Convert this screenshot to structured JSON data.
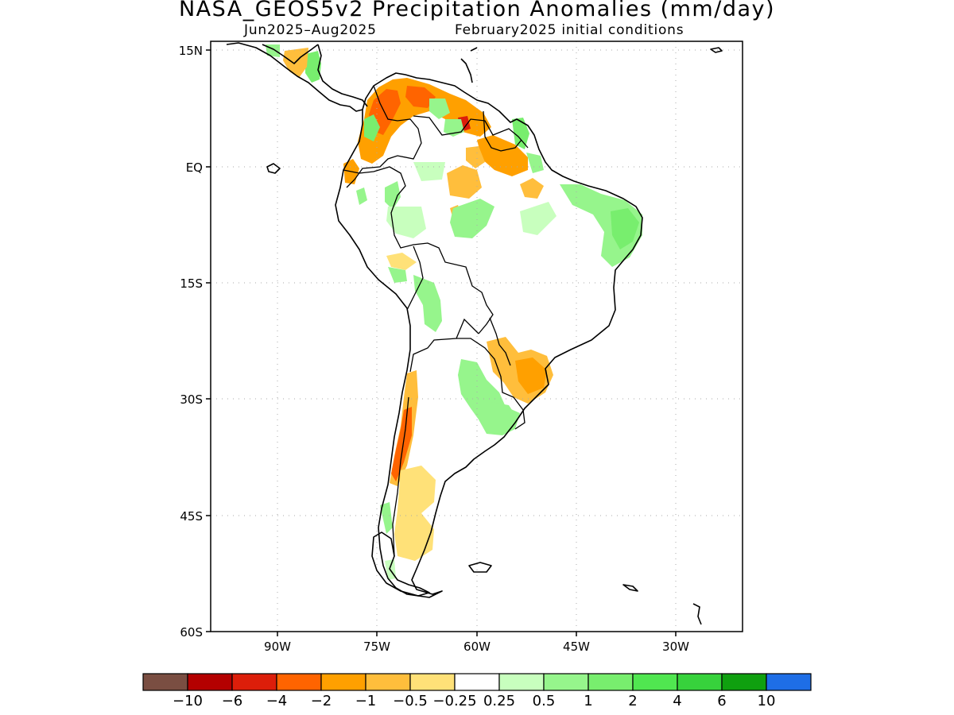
{
  "title": "NASA_GEOS5v2 Precipitation Anomalies (mm/day)",
  "subtitle_left": "Jun2025–Aug2025",
  "subtitle_right": "February2025 initial conditions",
  "map": {
    "lon_range": [
      -102.5,
      -22.5
    ],
    "lat_range": [
      -60,
      15
    ],
    "lat_ticks": [
      {
        "value": 15,
        "label": "15N"
      },
      {
        "value": 0,
        "label": "EQ"
      },
      {
        "value": -15,
        "label": "15S"
      },
      {
        "value": -30,
        "label": "30S"
      },
      {
        "value": -45,
        "label": "45S"
      },
      {
        "value": -60,
        "label": "60S"
      }
    ],
    "lon_ticks": [
      {
        "value": -90,
        "label": "90W"
      },
      {
        "value": -75,
        "label": "75W"
      },
      {
        "value": -60,
        "label": "60W"
      },
      {
        "value": -45,
        "label": "45W"
      },
      {
        "value": -30,
        "label": "30W"
      }
    ],
    "grid": "dotted"
  },
  "colorbar": {
    "colors": [
      "#7a4e42",
      "#b40000",
      "#dc1e0a",
      "#ff6400",
      "#ffa000",
      "#ffbe3c",
      "#ffe178",
      "#ffffff",
      "#c8ffbe",
      "#96f58c",
      "#78ee6e",
      "#50e650",
      "#37d23c",
      "#0fa00f",
      "#1e6ee6"
    ],
    "labels": [
      "−10",
      "−6",
      "−4",
      "−2",
      "−1",
      "−0.5",
      "−0.25",
      "0.25",
      "0.5",
      "1",
      "2",
      "4",
      "6",
      "10"
    ]
  },
  "anomaly_colors": {
    "strong_dry": "#dc1e0a",
    "dry": "#ff6400",
    "moderate_dry": "#ffa000",
    "light_dry": "#ffbe3c",
    "slight_dry": "#ffe178",
    "slight_wet": "#c8ffbe",
    "light_wet": "#96f58c",
    "moderate_wet": "#78ee6e"
  }
}
